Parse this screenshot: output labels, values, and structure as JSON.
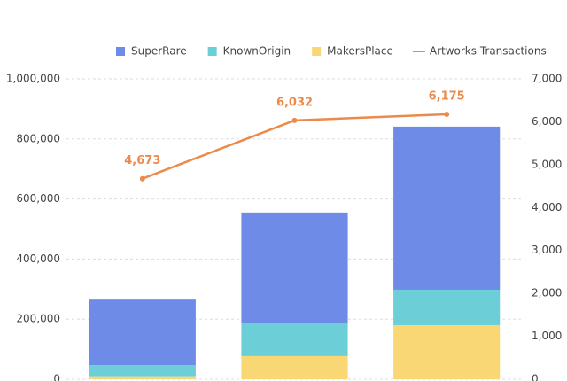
{
  "chart_data": {
    "type": "bar",
    "categories": [
      null,
      null,
      null
    ],
    "series": [
      {
        "name": "SuperRare",
        "color": "#6f8be8",
        "values": [
          218000,
          369000,
          543000
        ]
      },
      {
        "name": "KnownOrigin",
        "color": "#6ccfd8",
        "values": [
          37000,
          109000,
          118000
        ]
      },
      {
        "name": "MakersPlace",
        "color": "#f9d774",
        "values": [
          10000,
          77000,
          180000
        ]
      },
      {
        "name": "Artworks Transactions",
        "type": "line",
        "axis": "y2",
        "color": "#ec8a4c",
        "values": [
          4673,
          6032,
          6175
        ],
        "value_labels": [
          "4,673",
          "6,032",
          "6,175"
        ]
      }
    ],
    "ylim": [
      0,
      1000000
    ],
    "yticks": [
      0,
      {
        "value": 200000,
        "label": "200,000"
      },
      {
        "value": 400000,
        "label": "400,000"
      },
      {
        "value": 600000,
        "label": "600,000"
      },
      {
        "value": 800000,
        "label": "800,000"
      },
      {
        "value": 1000000,
        "label": "1,000,000"
      }
    ],
    "y2lim": [
      0,
      7000
    ],
    "y2ticks": [
      0,
      {
        "value": 1000,
        "label": "1,000"
      },
      {
        "value": 2000,
        "label": "2,000"
      },
      {
        "value": 3000,
        "label": "3,000"
      },
      {
        "value": 4000,
        "label": "4,000"
      },
      {
        "value": 5000,
        "label": "5,000"
      },
      {
        "value": 6000,
        "label": "6,000"
      },
      {
        "value": 7000,
        "label": "7,000"
      }
    ],
    "grid": true,
    "stacked": true,
    "legend": "top"
  }
}
